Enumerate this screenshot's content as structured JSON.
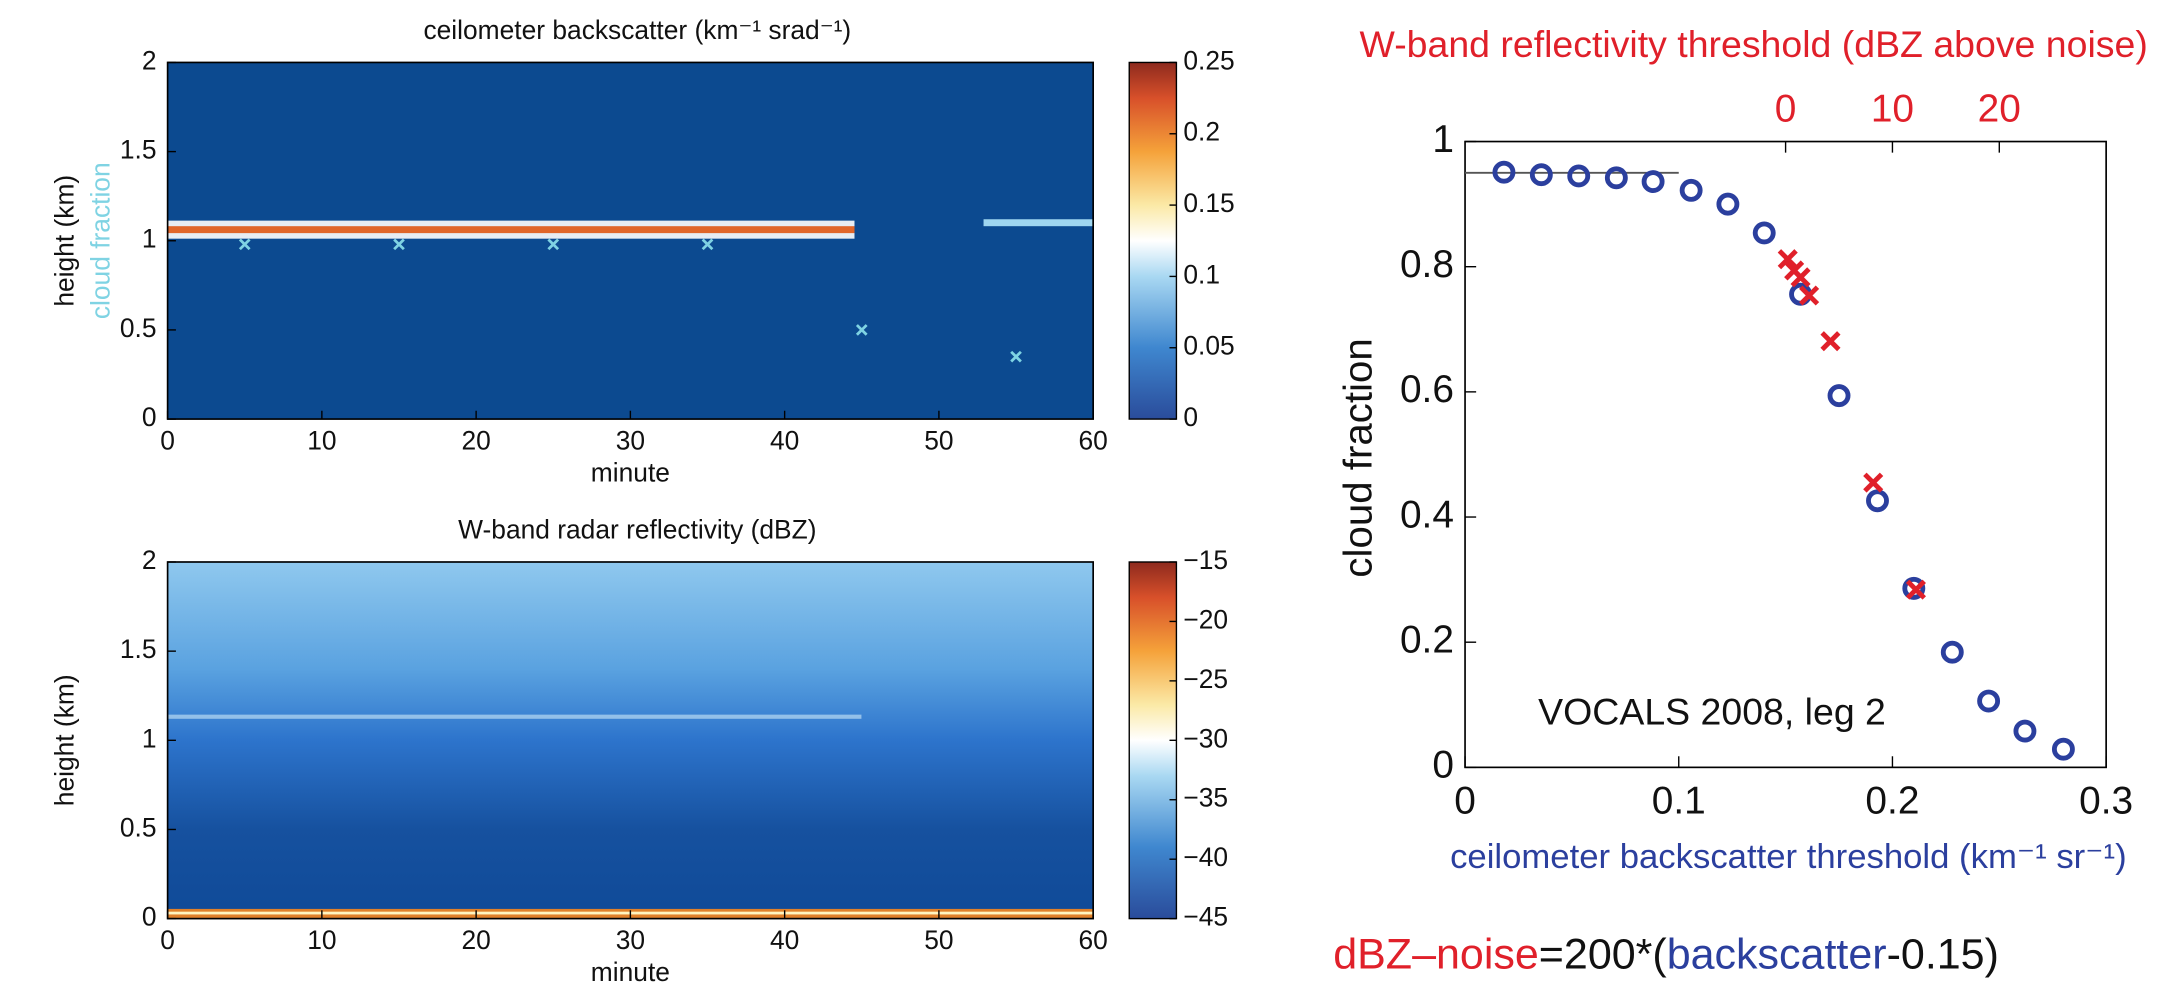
{
  "chart_data": [
    {
      "type": "heatmap",
      "title": "ceilometer backscatter (km⁻¹ srad⁻¹)",
      "x_label": "minute",
      "y_label": "height (km)",
      "xlim": [
        0,
        60
      ],
      "xticks": [
        0,
        10,
        20,
        30,
        40,
        50,
        60
      ],
      "ylim": [
        0,
        2
      ],
      "yticks": [
        0,
        0.5,
        1,
        1.5,
        2
      ],
      "clim": [
        0,
        0.25
      ],
      "cticks": [
        0,
        0.05,
        0.1,
        0.15,
        0.2,
        0.25
      ],
      "series_label": "cloud fraction",
      "series": [
        {
          "color": "#7fd3e3",
          "x": [
            5,
            15,
            25,
            35,
            45,
            55
          ],
          "values": [
            0.98,
            0.98,
            0.98,
            0.98,
            0.5,
            0.35
          ]
        }
      ]
    },
    {
      "type": "heatmap",
      "title": "W-band radar reflectivity (dBZ)",
      "x_label": "minute",
      "y_label": "height (km)",
      "xlim": [
        0,
        60
      ],
      "xticks": [
        0,
        10,
        20,
        30,
        40,
        50,
        60
      ],
      "ylim": [
        0,
        2
      ],
      "yticks": [
        0,
        0.5,
        1,
        1.5,
        2
      ],
      "clim": [
        -45,
        -15
      ],
      "cticks": [
        {
          "value": -45,
          "label": "−45"
        },
        {
          "value": -40,
          "label": "−40"
        },
        {
          "value": -35,
          "label": "−35"
        },
        {
          "value": -30,
          "label": "−30"
        },
        {
          "value": -25,
          "label": "−25"
        },
        {
          "value": -20,
          "label": "−20"
        },
        {
          "value": -15,
          "label": "−15"
        }
      ]
    },
    {
      "type": "scatter",
      "title": "W-band reflectivity threshold (dBZ above noise)",
      "title_color": "#e0202a",
      "x_label": "ceilometer backscatter threshold (km⁻¹ sr⁻¹)",
      "x_label_color": "#2b3f9e",
      "y_label": "cloud fraction",
      "annotation": "VOCALS 2008, leg 2",
      "equation": [
        {
          "text": "dBZ–noise",
          "color": "#e0202a"
        },
        {
          "text": "=200*(",
          "color": "#111111"
        },
        {
          "text": "backscatter",
          "color": "#2b3f9e"
        },
        {
          "text": "-0.15)",
          "color": "#111111"
        }
      ],
      "xlim": [
        0,
        0.3
      ],
      "xticks": [
        0,
        0.1,
        0.2,
        0.3
      ],
      "ylim": [
        0,
        1
      ],
      "yticks": [
        0,
        0.2,
        0.4,
        0.6,
        0.8,
        1
      ],
      "x2lim": [
        -30,
        30
      ],
      "x2ticks": [
        0,
        10,
        20
      ],
      "x2_color": "#e0202a",
      "reference_line": {
        "x": [
          0,
          0.1
        ],
        "y": 0.95,
        "color": "#555555"
      },
      "series": [
        {
          "marker": "circle",
          "color": "#2b3f9e",
          "x": [
            0.0182,
            0.0357,
            0.0532,
            0.0708,
            0.088,
            0.1058,
            0.123,
            0.14,
            0.157,
            0.175,
            0.193,
            0.21,
            0.228,
            0.245,
            0.262,
            0.28
          ],
          "values": [
            0.951,
            0.947,
            0.945,
            0.942,
            0.936,
            0.922,
            0.9,
            0.854,
            0.756,
            0.594,
            0.426,
            0.286,
            0.184,
            0.106,
            0.058,
            0.029
          ]
        },
        {
          "marker": "cross",
          "color": "#e0202a",
          "x": [
            0.151,
            0.154,
            0.157,
            0.161,
            0.171,
            0.191,
            0.211
          ],
          "values": [
            0.812,
            0.794,
            0.783,
            0.754,
            0.681,
            0.455,
            0.284
          ]
        }
      ]
    }
  ]
}
